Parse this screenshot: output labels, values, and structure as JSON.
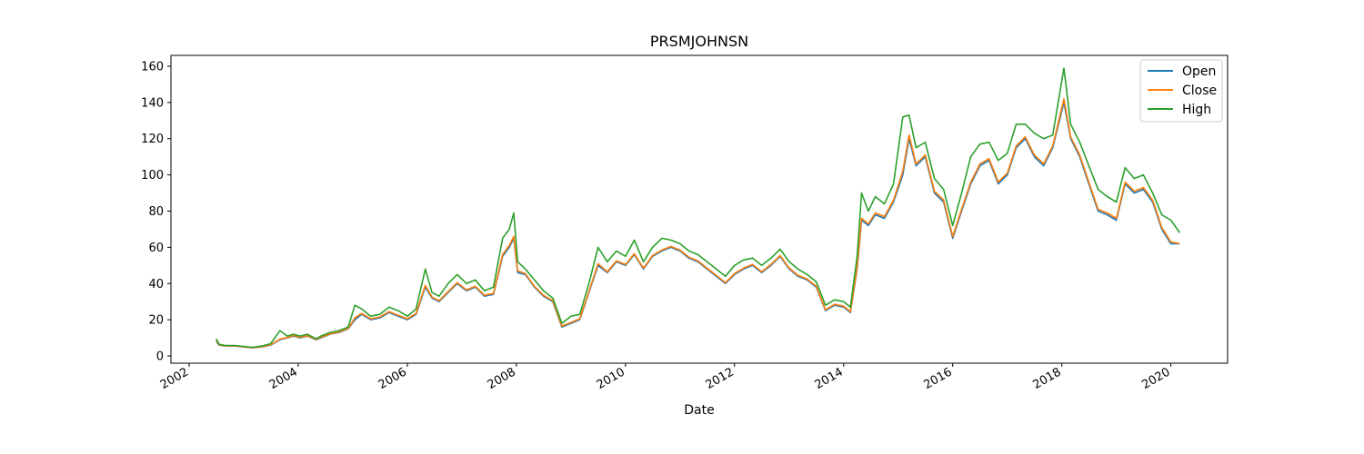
{
  "chart_data": {
    "type": "line",
    "title": "PRSMJOHNSN",
    "xlabel": "Date",
    "ylabel": "",
    "xlim": [
      "2001-09-01",
      "2021-01-15"
    ],
    "ylim": [
      -4,
      166
    ],
    "xticks": [
      "2002",
      "2004",
      "2006",
      "2008",
      "2010",
      "2012",
      "2014",
      "2016",
      "2018",
      "2020"
    ],
    "yticks": [
      0,
      20,
      40,
      60,
      80,
      100,
      120,
      140,
      160
    ],
    "grid": false,
    "legend": "top-right",
    "colors": {
      "Open": "#1f77b4",
      "Close": "#ff7f0e",
      "High": "#2ca02c"
    },
    "x": [
      "2002-07-01",
      "2002-07-20",
      "2002-09-01",
      "2002-11-01",
      "2003-01-01",
      "2003-03-01",
      "2003-05-01",
      "2003-07-01",
      "2003-09-01",
      "2003-10-20",
      "2003-12-01",
      "2004-01-15",
      "2004-03-01",
      "2004-05-01",
      "2004-06-01",
      "2004-08-01",
      "2004-10-01",
      "2004-12-01",
      "2005-01-15",
      "2005-03-01",
      "2005-05-01",
      "2005-07-01",
      "2005-09-01",
      "2005-11-01",
      "2006-01-01",
      "2006-03-01",
      "2006-05-01",
      "2006-06-15",
      "2006-08-01",
      "2006-10-01",
      "2006-12-01",
      "2007-02-01",
      "2007-04-01",
      "2007-06-01",
      "2007-08-01",
      "2007-10-01",
      "2007-11-15",
      "2007-12-15",
      "2008-01-10",
      "2008-03-01",
      "2008-05-01",
      "2008-07-01",
      "2008-09-01",
      "2008-11-01",
      "2009-01-01",
      "2009-03-01",
      "2009-05-01",
      "2009-07-01",
      "2009-09-01",
      "2009-11-01",
      "2010-01-01",
      "2010-03-01",
      "2010-05-01",
      "2010-07-01",
      "2010-09-01",
      "2010-11-01",
      "2011-01-01",
      "2011-03-01",
      "2011-05-01",
      "2011-07-01",
      "2011-09-01",
      "2011-11-01",
      "2012-01-01",
      "2012-03-01",
      "2012-05-01",
      "2012-07-01",
      "2012-09-01",
      "2012-11-01",
      "2013-01-01",
      "2013-03-01",
      "2013-05-01",
      "2013-07-01",
      "2013-09-01",
      "2013-11-01",
      "2014-01-01",
      "2014-02-15",
      "2014-04-01",
      "2014-05-01",
      "2014-06-15",
      "2014-08-01",
      "2014-10-01",
      "2014-12-01",
      "2015-02-01",
      "2015-03-15",
      "2015-05-01",
      "2015-07-01",
      "2015-09-01",
      "2015-11-01",
      "2016-01-01",
      "2016-03-01",
      "2016-05-01",
      "2016-07-01",
      "2016-09-01",
      "2016-11-01",
      "2017-01-01",
      "2017-03-01",
      "2017-05-01",
      "2017-07-01",
      "2017-09-01",
      "2017-11-01",
      "2018-01-15",
      "2018-03-01",
      "2018-05-01",
      "2018-07-01",
      "2018-09-01",
      "2018-11-01",
      "2019-01-01",
      "2019-03-01",
      "2019-05-01",
      "2019-07-01",
      "2019-09-01",
      "2019-11-01",
      "2020-01-01",
      "2020-03-01"
    ],
    "series": [
      {
        "name": "Open",
        "values": [
          8,
          6,
          5.5,
          5.5,
          5,
          4.5,
          5,
          6,
          9,
          10,
          11,
          10,
          11,
          9,
          10,
          12,
          13,
          15,
          20,
          23,
          20,
          21,
          24,
          22,
          20,
          23,
          38,
          32,
          30,
          35,
          40,
          36,
          38,
          33,
          34,
          55,
          60,
          65,
          46,
          45,
          38,
          33,
          30,
          16,
          18,
          20,
          35,
          50,
          46,
          52,
          50,
          56,
          48,
          55,
          58,
          60,
          58,
          54,
          52,
          48,
          44,
          40,
          45,
          48,
          50,
          46,
          50,
          55,
          48,
          44,
          42,
          38,
          25,
          28,
          27,
          24,
          48,
          75,
          72,
          78,
          76,
          85,
          100,
          120,
          105,
          110,
          90,
          85,
          65,
          80,
          95,
          105,
          108,
          95,
          100,
          115,
          120,
          110,
          105,
          115,
          140,
          120,
          110,
          95,
          80,
          78,
          75,
          95,
          90,
          92,
          85,
          70,
          62,
          62
        ]
      },
      {
        "name": "Close",
        "values": [
          8.5,
          6.2,
          5.6,
          5.6,
          5.1,
          4.6,
          5.1,
          6.2,
          9.3,
          10.2,
          11.3,
          10.3,
          11.2,
          9.2,
          10.3,
          12.2,
          13.3,
          15.2,
          21,
          23.5,
          20.5,
          21.5,
          24.5,
          22.5,
          20.5,
          23.5,
          39,
          32.5,
          30.5,
          35.5,
          40.5,
          36.5,
          38.5,
          33.5,
          34.5,
          56,
          61,
          66,
          47,
          45.5,
          38.5,
          33.5,
          30.5,
          16.5,
          18.5,
          20.5,
          35.5,
          51,
          46.5,
          52.5,
          50.5,
          56.5,
          48.5,
          55.5,
          58.5,
          60.5,
          58.5,
          54.5,
          52.5,
          48.5,
          44.5,
          40.5,
          45.5,
          48.5,
          50.5,
          46.5,
          50.5,
          55.5,
          48.5,
          44.5,
          42.5,
          38.5,
          25.5,
          28.5,
          27.5,
          24.5,
          49,
          76,
          73,
          79,
          77,
          86,
          102,
          122,
          106,
          111,
          91,
          86,
          66,
          81,
          96,
          106,
          109,
          96,
          101,
          116,
          121,
          111,
          106,
          116,
          142,
          121,
          111,
          96,
          81,
          79,
          76,
          96,
          91,
          93,
          86,
          71,
          63,
          62
        ]
      },
      {
        "name": "High",
        "values": [
          9.5,
          6.5,
          5.8,
          5.8,
          5.3,
          4.8,
          5.5,
          6.8,
          14,
          11,
          12,
          11,
          12,
          9.5,
          11,
          13,
          14,
          16,
          28,
          26,
          22,
          23,
          27,
          25,
          22,
          26,
          48,
          35,
          33,
          40,
          45,
          40,
          42,
          36,
          38,
          65,
          70,
          79,
          52,
          48,
          42,
          36,
          32,
          18,
          22,
          23,
          40,
          60,
          52,
          58,
          55,
          64,
          52,
          60,
          65,
          64,
          62,
          58,
          56,
          52,
          48,
          44,
          50,
          53,
          54,
          50,
          54,
          59,
          52,
          48,
          45,
          41,
          28,
          31,
          30,
          27,
          55,
          90,
          80,
          88,
          84,
          95,
          132,
          133,
          115,
          118,
          98,
          92,
          72,
          90,
          110,
          117,
          118,
          108,
          112,
          128,
          128,
          123,
          120,
          122,
          159,
          128,
          118,
          105,
          92,
          88,
          85,
          104,
          98,
          100,
          90,
          78,
          75,
          68
        ]
      }
    ]
  }
}
